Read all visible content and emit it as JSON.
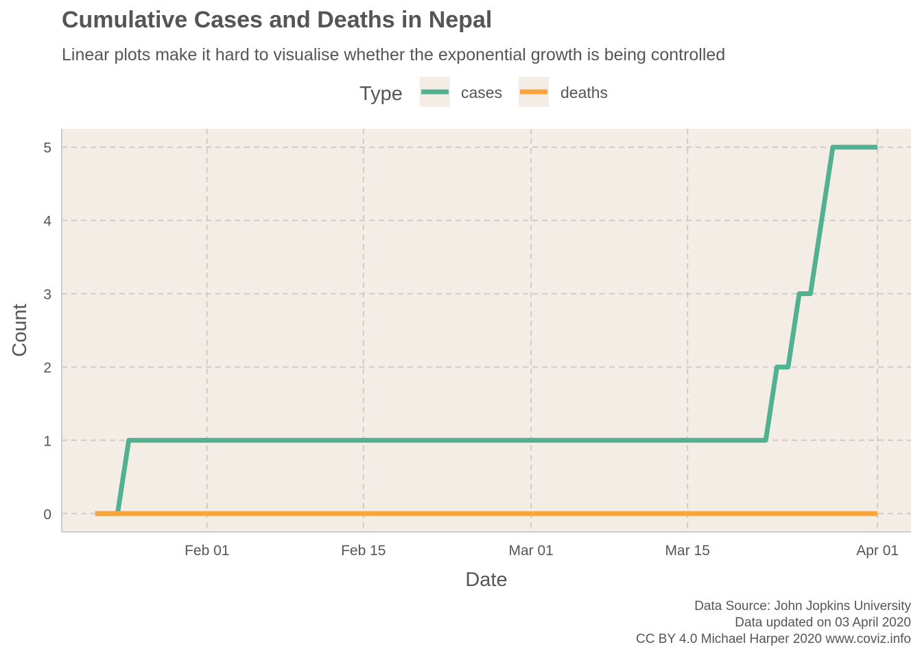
{
  "chart_data": {
    "type": "line",
    "title": "Cumulative Cases and Deaths in Nepal",
    "subtitle": "Linear plots make it hard to visualise whether the exponential growth is being controlled",
    "xlabel": "Date",
    "ylabel": "Count",
    "xlim": [
      "2020-01-19",
      "2020-04-04"
    ],
    "ylim": [
      -0.25,
      5.25
    ],
    "x_ticks": [
      {
        "date": "2020-02-01",
        "label": "Feb 01"
      },
      {
        "date": "2020-02-15",
        "label": "Feb 15"
      },
      {
        "date": "2020-03-01",
        "label": "Mar 01"
      },
      {
        "date": "2020-03-15",
        "label": "Mar 15"
      },
      {
        "date": "2020-04-01",
        "label": "Apr 01"
      }
    ],
    "y_ticks": [
      0,
      1,
      2,
      3,
      4,
      5
    ],
    "grid": true,
    "legend": {
      "title": "Type",
      "position": "top"
    },
    "series": [
      {
        "name": "cases",
        "color": "#52b191",
        "points": [
          {
            "x": "2020-01-22",
            "y": 0
          },
          {
            "x": "2020-01-24",
            "y": 0
          },
          {
            "x": "2020-01-25",
            "y": 1
          },
          {
            "x": "2020-03-22",
            "y": 1
          },
          {
            "x": "2020-03-23",
            "y": 2
          },
          {
            "x": "2020-03-24",
            "y": 2
          },
          {
            "x": "2020-03-25",
            "y": 3
          },
          {
            "x": "2020-03-26",
            "y": 3
          },
          {
            "x": "2020-03-28",
            "y": 5
          },
          {
            "x": "2020-04-01",
            "y": 5
          }
        ]
      },
      {
        "name": "deaths",
        "color": "#f8a53d",
        "points": [
          {
            "x": "2020-01-22",
            "y": 0
          },
          {
            "x": "2020-04-01",
            "y": 0
          }
        ]
      }
    ]
  },
  "caption": {
    "line1": "Data Source: John Jopkins University",
    "line2": "Data updated on 03 April 2020",
    "line3": "CC BY 4.0 Michael Harper 2020 www.coviz.info"
  },
  "colors": {
    "panel_background": "#f4ede6",
    "grid": "#cccccc",
    "text": "#555555"
  }
}
